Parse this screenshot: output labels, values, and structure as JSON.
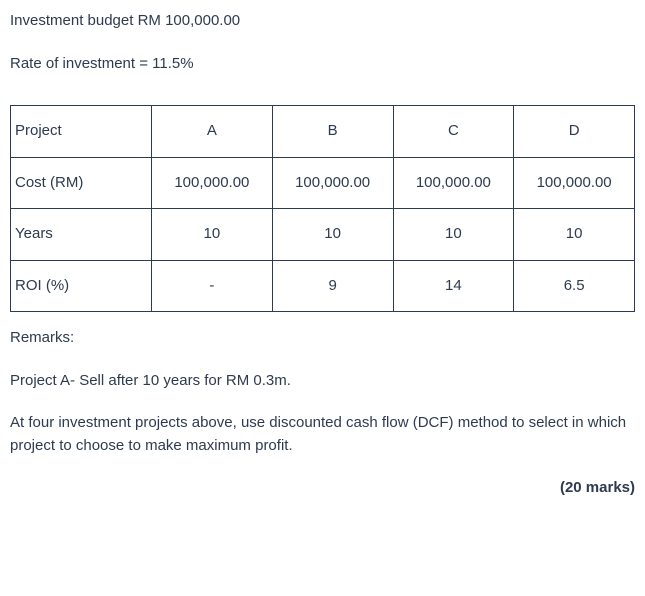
{
  "intro": {
    "line1": "Investment budget RM 100,000.00",
    "line2": "Rate of investment = 11.5%"
  },
  "table": {
    "rows": [
      {
        "label": "Project",
        "A": "A",
        "B": "B",
        "C": "C",
        "D": "D"
      },
      {
        "label": "Cost (RM)",
        "A": "100,000.00",
        "B": "100,000.00",
        "C": "100,000.00",
        "D": "100,000.00"
      },
      {
        "label": "Years",
        "A": "10",
        "B": "10",
        "C": "10",
        "D": "10"
      },
      {
        "label": "ROI (%)",
        "A": "-",
        "B": "9",
        "C": "14",
        "D": "6.5"
      }
    ]
  },
  "remarks": {
    "heading": "Remarks:",
    "line1": "Project A- Sell after 10 years for RM 0.3m.",
    "line2": " At four investment projects above, use discounted cash flow (DCF) method to select in which project to choose to make maximum profit."
  },
  "marks": "(20 marks)",
  "colors": {
    "text": "#2e3a4f",
    "border": "#2e3a4f",
    "background": "#ffffff"
  }
}
